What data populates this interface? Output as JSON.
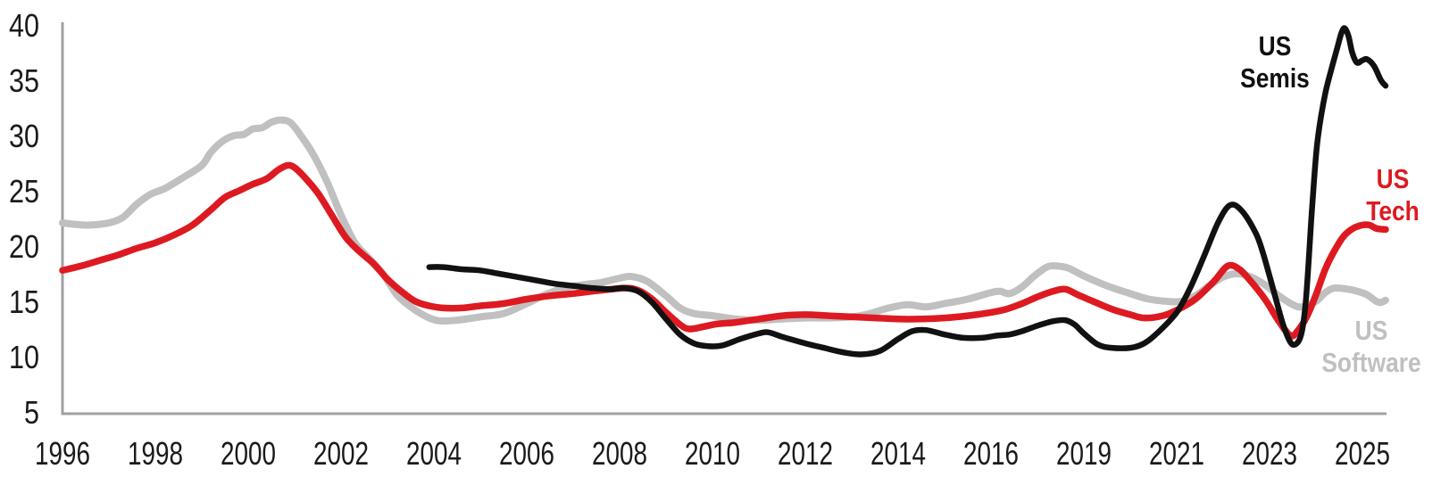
{
  "colors": {
    "background": "#ffffff",
    "axis": "#a0a0a0",
    "tick_text": "#1a1a1a",
    "semis": "#111111",
    "tech": "#dd1a21",
    "software": "#c0c0c0"
  },
  "annotations": {
    "semis": {
      "line1": "US",
      "line2": "Semis"
    },
    "tech": {
      "line1": "US",
      "line2": "Tech"
    },
    "software": {
      "line1": "US",
      "line2": "Software"
    }
  },
  "chart_data": {
    "type": "line",
    "title": "",
    "xlabel": "",
    "ylabel": "",
    "grid": "off",
    "legend_position": "end-of-line labels",
    "x_axis": {
      "tick_labels": [
        "1996",
        "1998",
        "2000",
        "2002",
        "2004",
        "2006",
        "2008",
        "2010",
        "2012",
        "2014",
        "2016",
        "2019",
        "2021",
        "2023",
        "2025"
      ]
    },
    "y_axis": {
      "tick_labels": [
        "40",
        "35",
        "30",
        "25",
        "20",
        "15",
        "10",
        "5"
      ],
      "range": [
        5,
        40
      ],
      "tick_step": 5
    },
    "series": [
      {
        "name": "US Semis",
        "color": "#111111",
        "points": [
          [
            2003.9,
            18.1
          ],
          [
            2004.2,
            18.1
          ],
          [
            2004.6,
            17.9
          ],
          [
            2005.0,
            17.8
          ],
          [
            2005.4,
            17.5
          ],
          [
            2005.8,
            17.2
          ],
          [
            2006.2,
            16.9
          ],
          [
            2006.6,
            16.6
          ],
          [
            2007.0,
            16.4
          ],
          [
            2007.4,
            16.2
          ],
          [
            2007.8,
            16.1
          ],
          [
            2008.1,
            16.2
          ],
          [
            2008.4,
            15.9
          ],
          [
            2008.7,
            14.9
          ],
          [
            2009.0,
            13.4
          ],
          [
            2009.3,
            12.0
          ],
          [
            2009.6,
            11.2
          ],
          [
            2009.9,
            10.95
          ],
          [
            2010.2,
            11.0
          ],
          [
            2010.6,
            11.6
          ],
          [
            2011.0,
            12.1
          ],
          [
            2011.2,
            12.2
          ],
          [
            2011.5,
            11.8
          ],
          [
            2012.0,
            11.2
          ],
          [
            2012.4,
            10.8
          ],
          [
            2012.8,
            10.4
          ],
          [
            2013.2,
            10.2
          ],
          [
            2013.6,
            10.5
          ],
          [
            2014.0,
            11.6
          ],
          [
            2014.3,
            12.3
          ],
          [
            2014.6,
            12.4
          ],
          [
            2015.0,
            12.0
          ],
          [
            2015.4,
            11.7
          ],
          [
            2015.8,
            11.7
          ],
          [
            2016.2,
            11.9
          ],
          [
            2016.6,
            12.0
          ],
          [
            2017.0,
            12.3
          ],
          [
            2017.5,
            12.8
          ],
          [
            2018.0,
            13.2
          ],
          [
            2018.4,
            13.3
          ],
          [
            2018.7,
            12.9
          ],
          [
            2019.0,
            12.1
          ],
          [
            2019.3,
            11.1
          ],
          [
            2019.6,
            10.8
          ],
          [
            2020.0,
            10.8
          ],
          [
            2020.3,
            11.2
          ],
          [
            2020.6,
            12.2
          ],
          [
            2021.0,
            14.0
          ],
          [
            2021.3,
            16.3
          ],
          [
            2021.6,
            19.2
          ],
          [
            2021.9,
            22.2
          ],
          [
            2022.15,
            23.7
          ],
          [
            2022.4,
            23.2
          ],
          [
            2022.7,
            21.2
          ],
          [
            2022.85,
            19.5
          ],
          [
            2023.0,
            17.3
          ],
          [
            2023.15,
            15.0
          ],
          [
            2023.3,
            12.8
          ],
          [
            2023.45,
            11.3
          ],
          [
            2023.55,
            11.1
          ],
          [
            2023.65,
            11.6
          ],
          [
            2023.72,
            12.8
          ],
          [
            2023.78,
            15.0
          ],
          [
            2023.84,
            18.5
          ],
          [
            2023.9,
            22.5
          ],
          [
            2023.96,
            26.0
          ],
          [
            2024.02,
            29.0
          ],
          [
            2024.1,
            31.5
          ],
          [
            2024.2,
            33.8
          ],
          [
            2024.3,
            35.5
          ],
          [
            2024.45,
            37.8
          ],
          [
            2024.55,
            39.3
          ],
          [
            2024.62,
            39.7
          ],
          [
            2024.7,
            39.0
          ],
          [
            2024.78,
            37.5
          ],
          [
            2024.88,
            36.6
          ],
          [
            2025.0,
            36.8
          ],
          [
            2025.1,
            36.9
          ],
          [
            2025.25,
            36.3
          ],
          [
            2025.4,
            35.0
          ],
          [
            2025.5,
            34.5
          ]
        ]
      },
      {
        "name": "US Tech",
        "color": "#dd1a21",
        "points": [
          [
            1996.0,
            17.8
          ],
          [
            1996.4,
            18.2
          ],
          [
            1996.8,
            18.7
          ],
          [
            1997.2,
            19.2
          ],
          [
            1997.6,
            19.8
          ],
          [
            1998.0,
            20.3
          ],
          [
            1998.4,
            21.0
          ],
          [
            1998.8,
            21.9
          ],
          [
            1999.2,
            23.3
          ],
          [
            1999.5,
            24.4
          ],
          [
            1999.8,
            25.0
          ],
          [
            2000.1,
            25.6
          ],
          [
            2000.4,
            26.1
          ],
          [
            2000.65,
            26.9
          ],
          [
            2000.85,
            27.3
          ],
          [
            2001.0,
            27.1
          ],
          [
            2001.2,
            26.3
          ],
          [
            2001.5,
            24.8
          ],
          [
            2001.8,
            22.8
          ],
          [
            2002.1,
            20.8
          ],
          [
            2002.4,
            19.5
          ],
          [
            2002.7,
            18.4
          ],
          [
            2003.0,
            17.0
          ],
          [
            2003.3,
            15.9
          ],
          [
            2003.6,
            15.0
          ],
          [
            2003.9,
            14.6
          ],
          [
            2004.2,
            14.4
          ],
          [
            2004.6,
            14.4
          ],
          [
            2005.0,
            14.6
          ],
          [
            2005.5,
            14.8
          ],
          [
            2006.0,
            15.2
          ],
          [
            2006.5,
            15.5
          ],
          [
            2007.0,
            15.7
          ],
          [
            2007.5,
            15.95
          ],
          [
            2008.1,
            16.2
          ],
          [
            2008.4,
            16.0
          ],
          [
            2008.7,
            15.2
          ],
          [
            2009.0,
            14.0
          ],
          [
            2009.3,
            12.9
          ],
          [
            2009.5,
            12.5
          ],
          [
            2009.8,
            12.7
          ],
          [
            2010.1,
            12.95
          ],
          [
            2010.5,
            13.1
          ],
          [
            2011.0,
            13.4
          ],
          [
            2011.5,
            13.7
          ],
          [
            2012.0,
            13.8
          ],
          [
            2012.5,
            13.7
          ],
          [
            2013.0,
            13.6
          ],
          [
            2013.5,
            13.5
          ],
          [
            2014.0,
            13.4
          ],
          [
            2014.5,
            13.4
          ],
          [
            2015.0,
            13.5
          ],
          [
            2015.5,
            13.7
          ],
          [
            2016.0,
            14.0
          ],
          [
            2016.5,
            14.3
          ],
          [
            2017.0,
            14.8
          ],
          [
            2017.5,
            15.4
          ],
          [
            2018.0,
            15.9
          ],
          [
            2018.4,
            16.1
          ],
          [
            2018.8,
            15.6
          ],
          [
            2019.2,
            15.0
          ],
          [
            2019.6,
            14.3
          ],
          [
            2020.0,
            13.8
          ],
          [
            2020.3,
            13.5
          ],
          [
            2020.7,
            13.7
          ],
          [
            2021.0,
            14.2
          ],
          [
            2021.4,
            15.2
          ],
          [
            2021.8,
            16.8
          ],
          [
            2022.1,
            18.2
          ],
          [
            2022.35,
            17.9
          ],
          [
            2022.6,
            16.8
          ],
          [
            2022.9,
            15.2
          ],
          [
            2023.2,
            13.2
          ],
          [
            2023.45,
            11.9
          ],
          [
            2023.6,
            12.3
          ],
          [
            2023.8,
            13.6
          ],
          [
            2024.0,
            15.6
          ],
          [
            2024.2,
            17.9
          ],
          [
            2024.4,
            19.6
          ],
          [
            2024.6,
            20.9
          ],
          [
            2024.8,
            21.6
          ],
          [
            2025.0,
            21.9
          ],
          [
            2025.15,
            21.9
          ],
          [
            2025.3,
            21.6
          ],
          [
            2025.5,
            21.5
          ]
        ]
      },
      {
        "name": "US Software",
        "color": "#c0c0c0",
        "points": [
          [
            1996.0,
            22.1
          ],
          [
            1996.3,
            21.95
          ],
          [
            1996.6,
            21.9
          ],
          [
            1997.0,
            22.1
          ],
          [
            1997.3,
            22.6
          ],
          [
            1997.6,
            23.8
          ],
          [
            1997.9,
            24.7
          ],
          [
            1998.2,
            25.2
          ],
          [
            1998.6,
            26.2
          ],
          [
            1999.0,
            27.3
          ],
          [
            1999.2,
            28.5
          ],
          [
            1999.45,
            29.5
          ],
          [
            1999.7,
            30.0
          ],
          [
            1999.9,
            30.1
          ],
          [
            2000.1,
            30.6
          ],
          [
            2000.3,
            30.7
          ],
          [
            2000.5,
            31.2
          ],
          [
            2000.7,
            31.4
          ],
          [
            2000.9,
            31.2
          ],
          [
            2001.1,
            30.2
          ],
          [
            2001.4,
            28.3
          ],
          [
            2001.7,
            25.8
          ],
          [
            2002.0,
            22.8
          ],
          [
            2002.3,
            20.3
          ],
          [
            2002.6,
            18.9
          ],
          [
            2002.9,
            17.5
          ],
          [
            2003.2,
            15.6
          ],
          [
            2003.5,
            14.5
          ],
          [
            2003.8,
            13.7
          ],
          [
            2004.1,
            13.25
          ],
          [
            2004.5,
            13.3
          ],
          [
            2005.0,
            13.6
          ],
          [
            2005.5,
            13.9
          ],
          [
            2006.0,
            14.8
          ],
          [
            2006.4,
            15.6
          ],
          [
            2006.8,
            16.2
          ],
          [
            2007.2,
            16.5
          ],
          [
            2007.6,
            16.7
          ],
          [
            2008.0,
            17.1
          ],
          [
            2008.25,
            17.25
          ],
          [
            2008.6,
            16.8
          ],
          [
            2009.0,
            15.5
          ],
          [
            2009.3,
            14.4
          ],
          [
            2009.6,
            13.9
          ],
          [
            2010.0,
            13.7
          ],
          [
            2010.5,
            13.4
          ],
          [
            2011.0,
            13.3
          ],
          [
            2011.5,
            13.4
          ],
          [
            2012.0,
            13.5
          ],
          [
            2012.5,
            13.5
          ],
          [
            2013.0,
            13.6
          ],
          [
            2013.4,
            13.9
          ],
          [
            2013.8,
            14.4
          ],
          [
            2014.2,
            14.7
          ],
          [
            2014.6,
            14.5
          ],
          [
            2015.0,
            14.8
          ],
          [
            2015.5,
            15.2
          ],
          [
            2016.0,
            15.8
          ],
          [
            2016.3,
            15.9
          ],
          [
            2016.6,
            15.7
          ],
          [
            2017.0,
            16.3
          ],
          [
            2017.4,
            17.3
          ],
          [
            2017.8,
            18.1
          ],
          [
            2018.1,
            18.2
          ],
          [
            2018.5,
            18.0
          ],
          [
            2019.0,
            17.3
          ],
          [
            2019.5,
            16.4
          ],
          [
            2020.0,
            15.7
          ],
          [
            2020.4,
            15.2
          ],
          [
            2020.8,
            15.0
          ],
          [
            2021.1,
            15.0
          ],
          [
            2021.4,
            15.5
          ],
          [
            2021.7,
            16.4
          ],
          [
            2022.0,
            17.2
          ],
          [
            2022.3,
            17.5
          ],
          [
            2022.6,
            17.2
          ],
          [
            2022.9,
            16.5
          ],
          [
            2023.2,
            15.5
          ],
          [
            2023.5,
            14.7
          ],
          [
            2023.7,
            14.5
          ],
          [
            2024.0,
            15.0
          ],
          [
            2024.2,
            15.8
          ],
          [
            2024.4,
            16.2
          ],
          [
            2024.7,
            16.1
          ],
          [
            2024.9,
            15.9
          ],
          [
            2025.1,
            15.6
          ],
          [
            2025.3,
            15.0
          ],
          [
            2025.4,
            14.9
          ],
          [
            2025.5,
            15.1
          ]
        ]
      }
    ]
  }
}
